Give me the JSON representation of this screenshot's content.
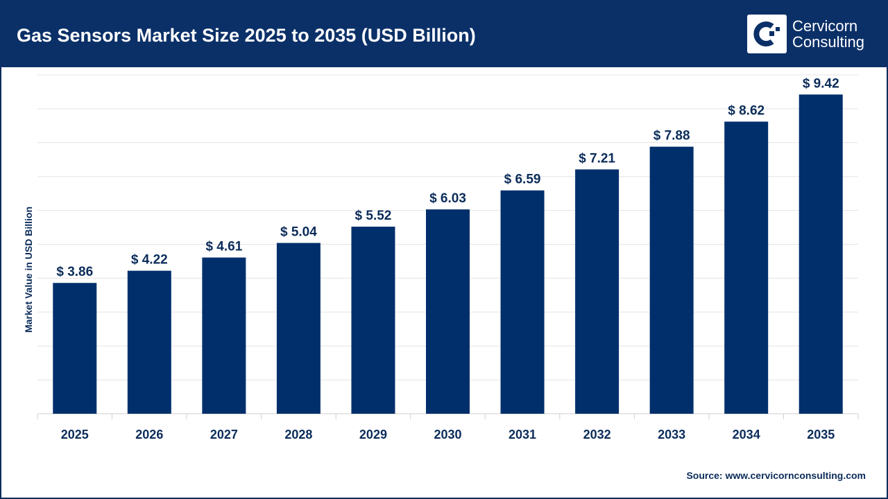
{
  "header": {
    "title": "Gas Sensors Market Size 2025 to 2035 (USD Billion)",
    "logo_line1": "Cervicorn",
    "logo_line2": "Consulting"
  },
  "source": "Source: www.cervicornconsulting.com",
  "colors": {
    "header": "#0b3068",
    "bar": "#002f6c",
    "label": "#0b2c5a"
  },
  "chart_data": {
    "type": "bar",
    "title": "Gas Sensors Market Size 2025 to 2035 (USD Billion)",
    "xlabel": "",
    "ylabel": "Market Value in USD Billion",
    "ylim": [
      0,
      10
    ],
    "grid": true,
    "value_prefix": "$ ",
    "categories": [
      "2025",
      "2026",
      "2027",
      "2028",
      "2029",
      "2030",
      "2031",
      "2032",
      "2033",
      "2034",
      "2035"
    ],
    "values": [
      3.86,
      4.22,
      4.61,
      5.04,
      5.52,
      6.03,
      6.59,
      7.21,
      7.88,
      8.62,
      9.42
    ]
  }
}
